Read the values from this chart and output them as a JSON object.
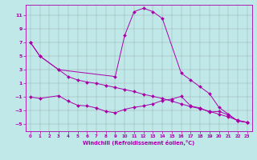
{
  "bg_color": "#c0e8e8",
  "grid_color": "#888888",
  "line_color": "#aa00aa",
  "xlabel": "Windchill (Refroidissement éolien,°C)",
  "xlim": [
    -0.5,
    23.5
  ],
  "ylim": [
    -6.0,
    12.5
  ],
  "yticks": [
    -5,
    -3,
    -1,
    1,
    3,
    5,
    7,
    9,
    11
  ],
  "xticks": [
    0,
    1,
    2,
    3,
    4,
    5,
    6,
    7,
    8,
    9,
    10,
    11,
    12,
    13,
    14,
    15,
    16,
    17,
    18,
    19,
    20,
    21,
    22,
    23
  ],
  "line1_x": [
    0,
    1,
    3,
    9,
    10,
    11,
    12,
    13,
    14,
    16,
    17,
    18,
    19,
    20,
    21,
    22,
    23
  ],
  "line1_y": [
    7,
    5,
    3,
    2,
    8,
    11.5,
    12.0,
    11.5,
    10.5,
    2.5,
    1.5,
    0.5,
    -0.5,
    -2.5,
    -3.5,
    -4.5,
    -4.7
  ],
  "line2_x": [
    0,
    1,
    3,
    4,
    5,
    6,
    7,
    8,
    9,
    10,
    11,
    12,
    13,
    14,
    15,
    16,
    17,
    18,
    19,
    20,
    21,
    22,
    23
  ],
  "line2_y": [
    7.0,
    5.0,
    3.0,
    2.0,
    1.5,
    1.2,
    1.0,
    0.7,
    0.4,
    0.1,
    -0.2,
    -0.6,
    -0.9,
    -1.2,
    -1.6,
    -2.0,
    -2.4,
    -2.7,
    -3.1,
    -3.5,
    -3.9,
    -4.4,
    -4.7
  ],
  "line3_x": [
    0,
    1,
    3,
    4,
    5,
    6,
    7,
    8,
    9,
    10,
    11,
    12,
    13,
    14,
    15,
    16,
    17,
    18,
    19,
    20,
    21,
    22,
    23
  ],
  "line3_y": [
    -1.0,
    -1.2,
    -0.8,
    -1.6,
    -2.2,
    -2.3,
    -2.6,
    -3.1,
    -3.3,
    -2.8,
    -2.5,
    -2.3,
    -2.0,
    -1.5,
    -1.3,
    -0.9,
    -2.3,
    -2.6,
    -3.2,
    -3.1,
    -3.6,
    -4.5,
    -4.7
  ]
}
